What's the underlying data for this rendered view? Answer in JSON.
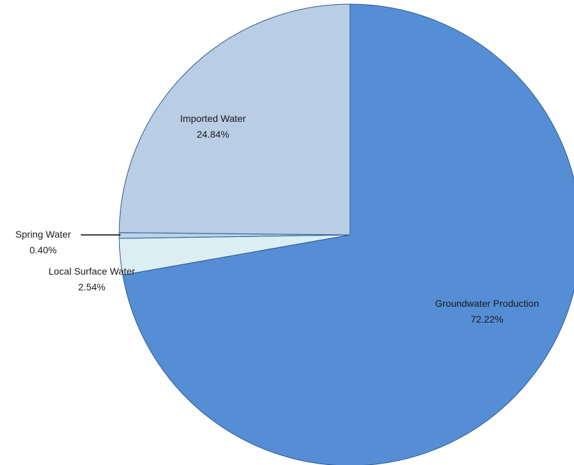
{
  "chart_data": {
    "type": "pie",
    "title": "",
    "start_angle_deg": 0,
    "direction": "clockwise",
    "slices": [
      {
        "name": "Groundwater Production",
        "value": 72.22,
        "label": "72.22%",
        "color": "#558ed5"
      },
      {
        "name": "Local Surface Water",
        "value": 2.54,
        "label": "2.54%",
        "color": "#dbeef4"
      },
      {
        "name": "Spring Water",
        "value": 0.4,
        "label": "0.40%",
        "color": "#b9d3ea"
      },
      {
        "name": "Imported Water",
        "value": 24.84,
        "label": "24.84%",
        "color": "#b9cde5"
      }
    ],
    "edge_color": "#2f5a8a"
  }
}
